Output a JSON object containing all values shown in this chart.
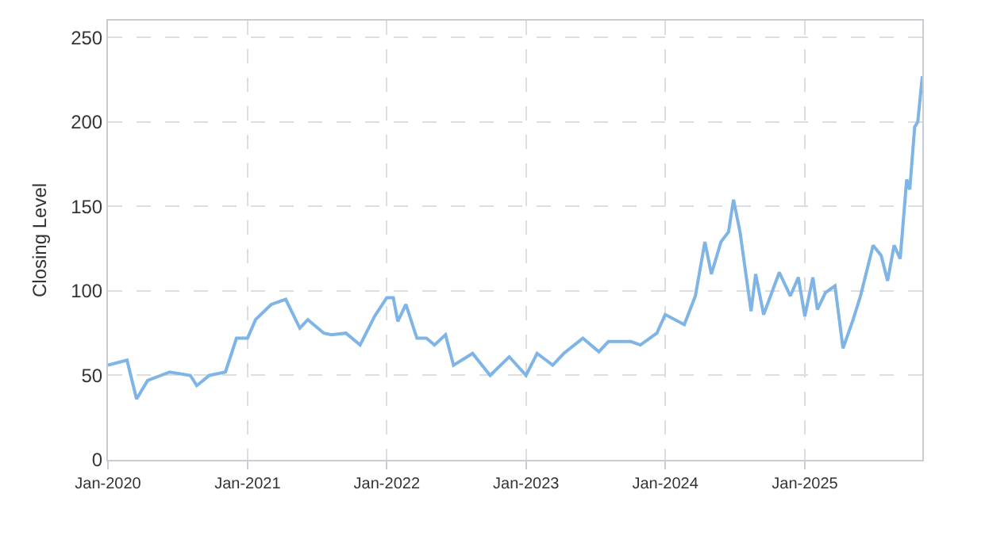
{
  "chart_data": {
    "type": "line",
    "ylabel": "Closing Level",
    "grid": true,
    "legend": false,
    "marker": "none",
    "line_style": "solid",
    "xlim": [
      "2020-01-01",
      "2025-11-05"
    ],
    "xticks": [
      {
        "value": "2020-01-01",
        "label": "Jan-2020"
      },
      {
        "value": "2021-01-01",
        "label": "Jan-2021"
      },
      {
        "value": "2022-01-01",
        "label": "Jan-2022"
      },
      {
        "value": "2023-01-01",
        "label": "Jan-2023"
      },
      {
        "value": "2024-01-01",
        "label": "Jan-2024"
      },
      {
        "value": "2025-01-01",
        "label": "Jan-2025"
      }
    ],
    "ylim": [
      0,
      260
    ],
    "yticks": [
      0,
      50,
      100,
      150,
      200,
      250
    ],
    "x": [
      "2020-01-01",
      "2020-02-20",
      "2020-03-16",
      "2020-04-14",
      "2020-06-11",
      "2020-08-04",
      "2020-08-21",
      "2020-09-23",
      "2020-11-04",
      "2020-12-03",
      "2021-01-01",
      "2021-01-22",
      "2021-03-04",
      "2021-04-11",
      "2021-05-18",
      "2021-06-08",
      "2021-07-20",
      "2021-08-09",
      "2021-09-16",
      "2021-10-23",
      "2021-11-30",
      "2022-01-01",
      "2022-01-18",
      "2022-01-30",
      "2022-02-20",
      "2022-03-21",
      "2022-04-15",
      "2022-05-06",
      "2022-06-04",
      "2022-06-25",
      "2022-08-14",
      "2022-09-29",
      "2022-11-18",
      "2023-01-01",
      "2023-01-30",
      "2023-03-12",
      "2023-04-10",
      "2023-05-30",
      "2023-07-11",
      "2023-08-05",
      "2023-10-03",
      "2023-10-28",
      "2023-12-10",
      "2024-01-01",
      "2024-02-20",
      "2024-03-20",
      "2024-04-14",
      "2024-05-01",
      "2024-05-26",
      "2024-06-15",
      "2024-06-28",
      "2024-07-15",
      "2024-08-13",
      "2024-08-25",
      "2024-09-15",
      "2024-10-26",
      "2024-11-24",
      "2024-12-15",
      "2025-01-01",
      "2025-01-22",
      "2025-02-03",
      "2025-02-24",
      "2025-03-21",
      "2025-04-11",
      "2025-05-06",
      "2025-05-27",
      "2025-06-29",
      "2025-07-20",
      "2025-08-06",
      "2025-08-23",
      "2025-09-08",
      "2025-09-25",
      "2025-10-03",
      "2025-10-16",
      "2025-10-24",
      "2025-11-05"
    ],
    "series": [
      {
        "color": "#7eb4e6",
        "values": [
          56,
          59,
          36,
          47,
          52,
          50,
          44,
          50,
          52,
          72,
          72,
          83,
          92,
          95,
          78,
          83,
          75,
          74,
          75,
          68,
          85,
          96,
          96,
          82,
          92,
          72,
          72,
          68,
          74,
          56,
          63,
          50,
          61,
          50,
          63,
          56,
          63,
          72,
          64,
          70,
          70,
          68,
          75,
          86,
          80,
          97,
          129,
          110,
          129,
          135,
          154,
          135,
          88,
          110,
          86,
          111,
          97,
          108,
          85,
          108,
          89,
          99,
          103,
          66,
          82,
          97,
          127,
          121,
          106,
          127,
          119,
          166,
          160,
          197,
          200,
          227
        ]
      }
    ]
  }
}
